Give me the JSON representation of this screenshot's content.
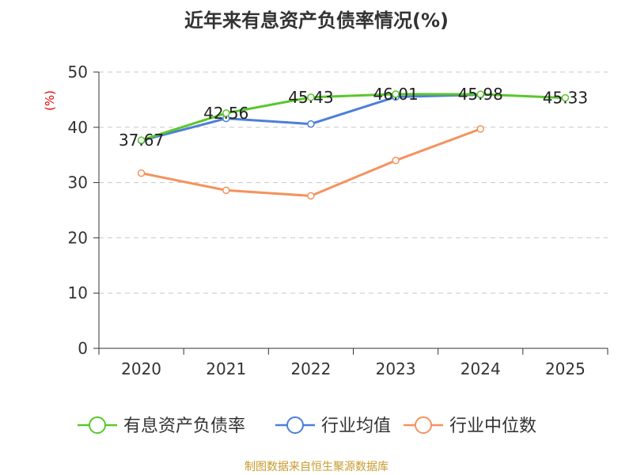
{
  "chart_data": {
    "type": "line",
    "title": "近年来有息资产负债率情况(%)",
    "ylabel": "(%)",
    "xlabel": "",
    "ylim": [
      0,
      50
    ],
    "yticks": [
      0,
      10,
      20,
      30,
      40,
      50
    ],
    "categories": [
      "2020",
      "2021",
      "2022",
      "2023",
      "2024",
      "2025"
    ],
    "grid": true,
    "legend_position": "bottom",
    "series": [
      {
        "name": "有息资产负债率",
        "color": "#5ac72b",
        "values": [
          37.67,
          42.56,
          45.43,
          46.01,
          45.98,
          45.33
        ],
        "labels": [
          "37.67",
          "42.56",
          "45.43",
          "46.01",
          "45.98",
          "45.33"
        ]
      },
      {
        "name": "行业均值",
        "color": "#4d7fd9",
        "values": [
          37.6,
          41.6,
          40.6,
          45.5,
          45.9,
          null
        ]
      },
      {
        "name": "行业中位数",
        "color": "#f5925e",
        "values": [
          31.7,
          28.6,
          27.6,
          34.0,
          39.7,
          null
        ]
      }
    ],
    "source": "制图数据来自恒生聚源数据库",
    "source_color": "#c79a2e",
    "ylabel_color": "#e60000"
  }
}
